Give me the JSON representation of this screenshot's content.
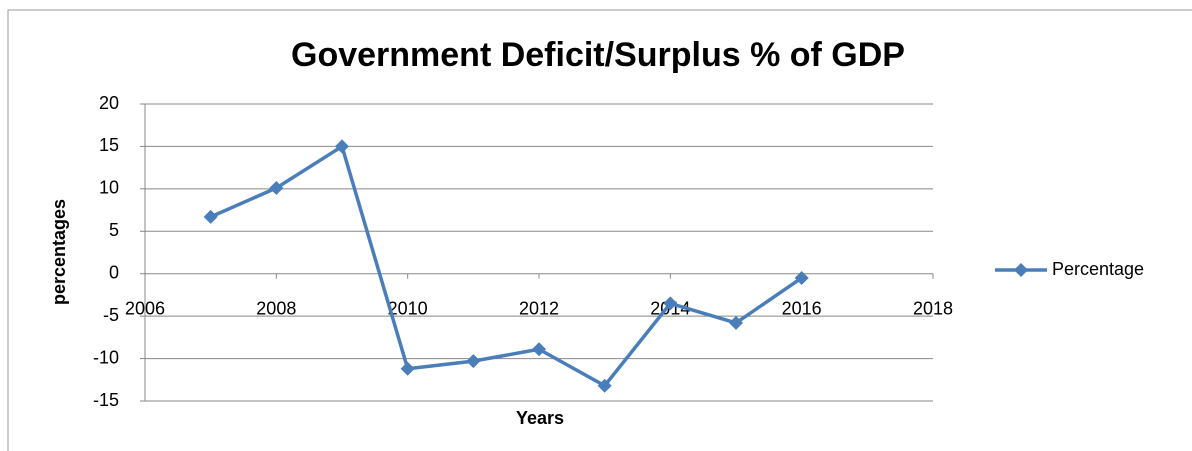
{
  "chart_data": {
    "type": "line",
    "title": "Government Deficit/Surplus % of GDP",
    "x_label": "Years",
    "y_label": "percentages",
    "series": [
      {
        "name": "Percentage",
        "color": "#4a7ebb",
        "x": [
          2007,
          2008,
          2009,
          2010,
          2011,
          2012,
          2013,
          2014,
          2015,
          2016
        ],
        "values": [
          6.7,
          10.1,
          15.0,
          -11.2,
          -10.3,
          -8.9,
          -13.2,
          -3.5,
          -5.8,
          -0.5
        ]
      }
    ],
    "xlim": [
      2006,
      2018
    ],
    "xticks": [
      2006,
      2008,
      2010,
      2012,
      2014,
      2016,
      2018
    ],
    "ylim": [
      -15,
      20
    ],
    "yticks": [
      -15,
      -10,
      -5,
      0,
      5,
      10,
      15,
      20
    ],
    "grid": true,
    "legend": "right"
  }
}
